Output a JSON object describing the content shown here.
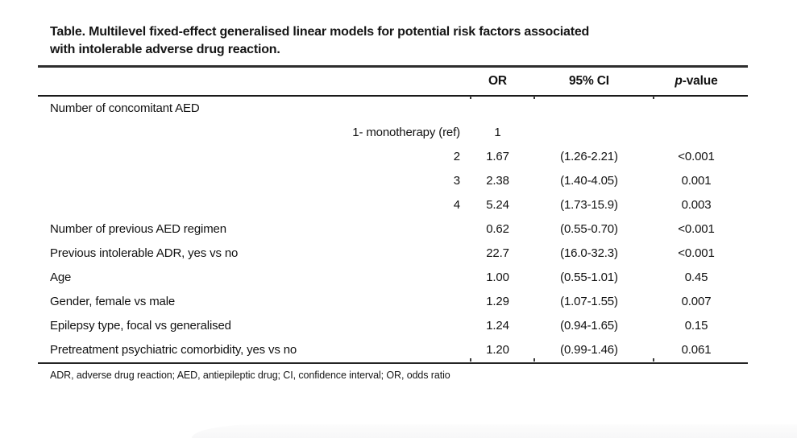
{
  "page": {
    "title_line1": "Table. Multilevel fixed-effect generalised linear models for potential risk factors associated",
    "title_line2": "with intolerable adverse drug reaction.",
    "footnote": "ADR, adverse drug reaction; AED, antiepileptic drug; CI, confidence interval; OR, odds ratio"
  },
  "table": {
    "headers": {
      "or": "OR",
      "ci": "95% CI",
      "p_italic": "p",
      "p_rest": "-value"
    },
    "rows": [
      {
        "label": "Number of concomitant AED",
        "or": "",
        "ci": "",
        "p": ""
      },
      {
        "label": "1- monotherapy (ref)",
        "or": "1",
        "ci": "",
        "p": ""
      },
      {
        "label": "2",
        "or": "1.67",
        "ci": "(1.26-2.21)",
        "p": "<0.001"
      },
      {
        "label": "3",
        "or": "2.38",
        "ci": "(1.40-4.05)",
        "p": "0.001"
      },
      {
        "label": "4",
        "or": "5.24",
        "ci": "(1.73-15.9)",
        "p": "0.003"
      },
      {
        "label": "Number of previous AED regimen",
        "or": "0.62",
        "ci": "(0.55-0.70)",
        "p": "<0.001"
      },
      {
        "label": "Previous intolerable ADR, yes vs no",
        "or": "22.7",
        "ci": "(16.0-32.3)",
        "p": "<0.001"
      },
      {
        "label": "Age",
        "or": "1.00",
        "ci": "(0.55-1.01)",
        "p": "0.45"
      },
      {
        "label": "Gender, female vs male",
        "or": "1.29",
        "ci": "(1.07-1.55)",
        "p": "0.007"
      },
      {
        "label": "Epilepsy type, focal vs generalised",
        "or": "1.24",
        "ci": "(0.94-1.65)",
        "p": "0.15"
      },
      {
        "label": "Pretreatment psychiatric comorbidity, yes vs no",
        "or": "1.20",
        "ci": "(0.99-1.46)",
        "p": "0.061"
      }
    ]
  }
}
